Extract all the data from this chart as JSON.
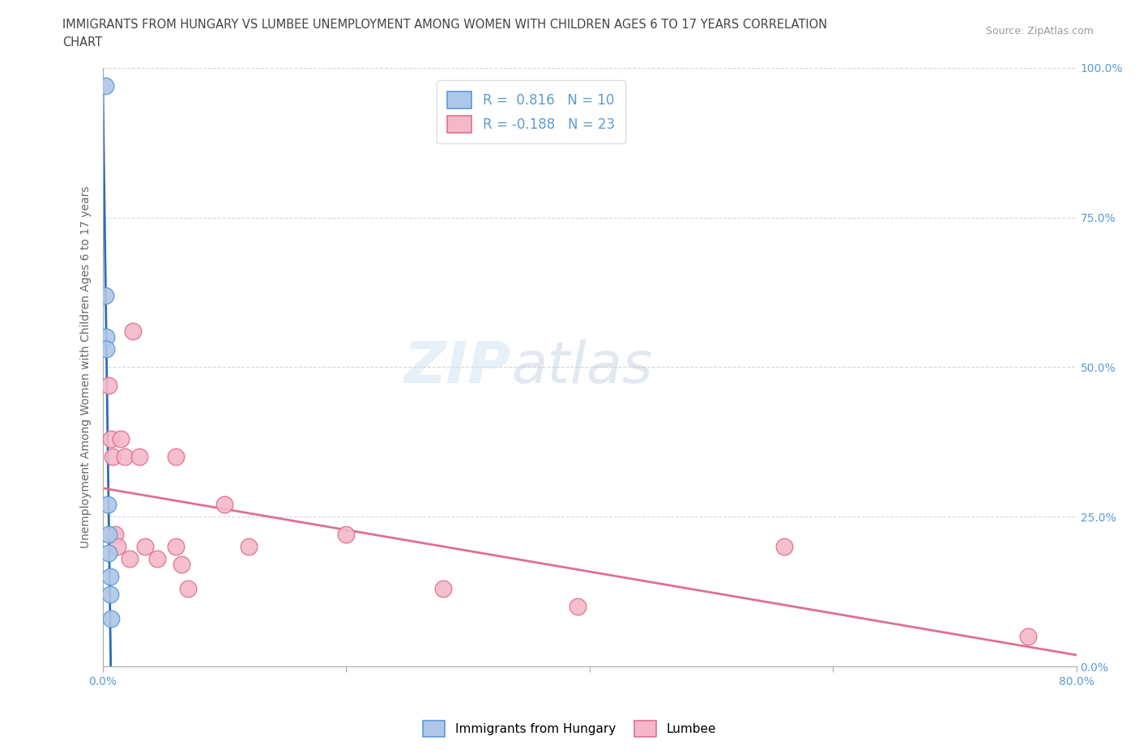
{
  "title_line1": "IMMIGRANTS FROM HUNGARY VS LUMBEE UNEMPLOYMENT AMONG WOMEN WITH CHILDREN AGES 6 TO 17 YEARS CORRELATION",
  "title_line2": "CHART",
  "source": "Source: ZipAtlas.com",
  "ylabel": "Unemployment Among Women with Children Ages 6 to 17 years",
  "xlim": [
    0,
    0.8
  ],
  "ylim": [
    0,
    1.0
  ],
  "hungary_color": "#aec6e8",
  "hungary_edge": "#5b9bd5",
  "lumbee_color": "#f4b8c8",
  "lumbee_edge": "#e07090",
  "hungary_R": 0.816,
  "hungary_N": 10,
  "lumbee_R": -0.188,
  "lumbee_N": 23,
  "hungary_line_color": "#2b6cb8",
  "lumbee_line_color": "#e07090",
  "hungary_x": [
    0.002,
    0.002,
    0.003,
    0.003,
    0.004,
    0.005,
    0.005,
    0.006,
    0.006,
    0.007
  ],
  "hungary_y": [
    0.97,
    0.62,
    0.55,
    0.53,
    0.27,
    0.22,
    0.19,
    0.15,
    0.12,
    0.08
  ],
  "lumbee_x": [
    0.005,
    0.007,
    0.008,
    0.01,
    0.012,
    0.015,
    0.018,
    0.022,
    0.025,
    0.03,
    0.035,
    0.045,
    0.06,
    0.06,
    0.065,
    0.07,
    0.1,
    0.12,
    0.2,
    0.28,
    0.39,
    0.56,
    0.76
  ],
  "lumbee_y": [
    0.47,
    0.38,
    0.35,
    0.22,
    0.2,
    0.38,
    0.35,
    0.18,
    0.56,
    0.35,
    0.2,
    0.18,
    0.35,
    0.2,
    0.17,
    0.13,
    0.27,
    0.2,
    0.22,
    0.13,
    0.1,
    0.2,
    0.05
  ],
  "bg_color": "#ffffff",
  "grid_color": "#cccccc",
  "tick_color": "#5b9bd5",
  "label_color": "#666666"
}
